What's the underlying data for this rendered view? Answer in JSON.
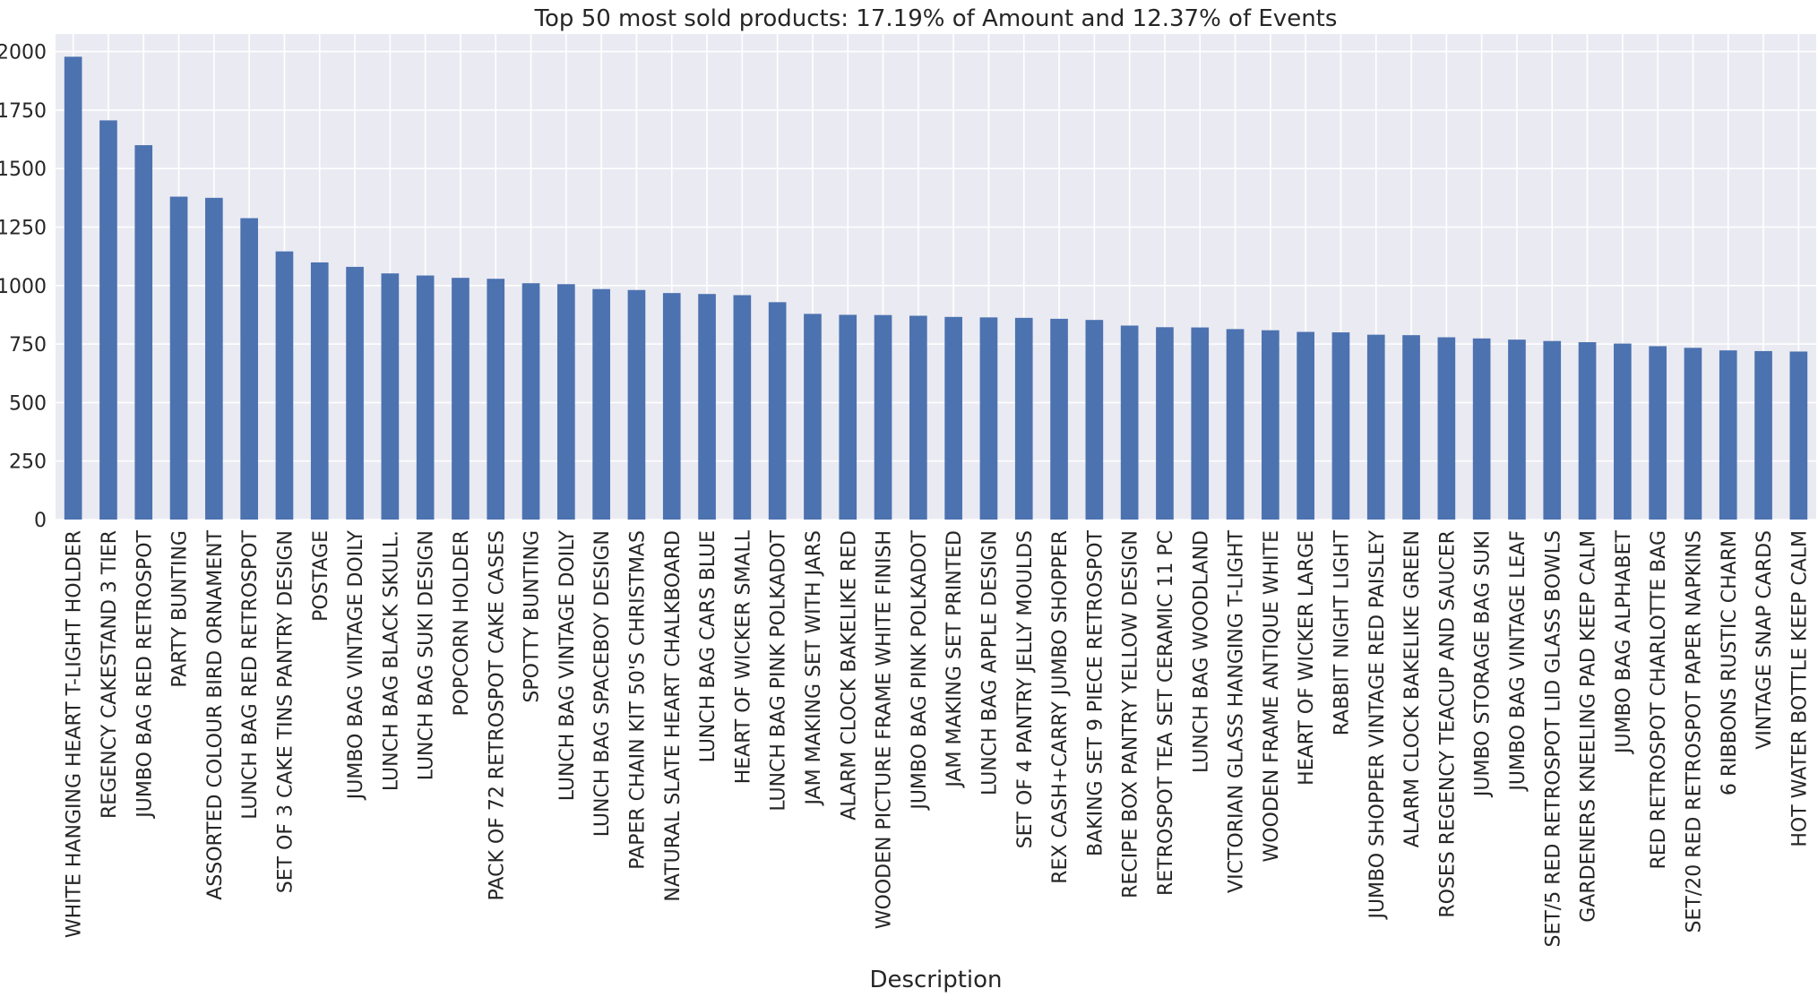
{
  "chart_data": {
    "type": "bar",
    "title": "Top 50 most sold products: 17.19% of Amount and 12.37% of Events",
    "xlabel": "Description",
    "ylabel": "",
    "ylim": [
      0,
      2075
    ],
    "yticks": [
      0,
      250,
      500,
      750,
      1000,
      1250,
      1500,
      1750,
      2000
    ],
    "grid": true,
    "legend": "none",
    "bar_color": "#4c72b0",
    "background_color": "#eaeaf2",
    "categories": [
      "WHITE HANGING HEART T-LIGHT HOLDER",
      "REGENCY CAKESTAND 3 TIER",
      "JUMBO BAG RED RETROSPOT",
      "PARTY BUNTING",
      "ASSORTED COLOUR BIRD ORNAMENT",
      "LUNCH BAG RED RETROSPOT",
      "SET OF 3 CAKE TINS PANTRY DESIGN",
      "POSTAGE",
      "JUMBO BAG VINTAGE DOILY",
      "LUNCH BAG  BLACK SKULL.",
      "LUNCH BAG SUKI DESIGN",
      "POPCORN HOLDER",
      "PACK OF 72 RETROSPOT CAKE CASES",
      "SPOTTY BUNTING",
      "LUNCH BAG VINTAGE DOILY",
      "LUNCH BAG SPACEBOY DESIGN",
      "PAPER CHAIN KIT 50'S CHRISTMAS",
      "NATURAL SLATE HEART CHALKBOARD",
      "LUNCH BAG CARS BLUE",
      "HEART OF WICKER SMALL",
      "LUNCH BAG PINK POLKADOT",
      "JAM MAKING SET WITH JARS",
      "ALARM CLOCK BAKELIKE RED",
      "WOODEN PICTURE FRAME WHITE FINISH",
      "JUMBO BAG PINK POLKADOT",
      "JAM MAKING SET PRINTED",
      "LUNCH BAG APPLE DESIGN",
      "SET OF 4 PANTRY JELLY MOULDS",
      "REX CASH+CARRY JUMBO SHOPPER",
      "BAKING SET 9 PIECE RETROSPOT",
      "RECIPE BOX PANTRY YELLOW DESIGN",
      "RETROSPOT TEA SET CERAMIC 11 PC",
      "LUNCH BAG WOODLAND",
      "VICTORIAN GLASS HANGING T-LIGHT",
      "WOODEN FRAME ANTIQUE WHITE",
      "HEART OF WICKER LARGE",
      "RABBIT NIGHT LIGHT",
      "JUMBO SHOPPER VINTAGE RED PAISLEY",
      "ALARM CLOCK BAKELIKE GREEN",
      "ROSES REGENCY TEACUP AND SAUCER",
      "JUMBO STORAGE BAG SUKI",
      "JUMBO BAG VINTAGE LEAF",
      "SET/5 RED RETROSPOT LID GLASS BOWLS",
      "GARDENERS KNEELING PAD KEEP CALM",
      "JUMBO BAG ALPHABET",
      "RED RETROSPOT CHARLOTTE BAG",
      "SET/20 RED RETROSPOT PAPER NAPKINS",
      "6 RIBBONS RUSTIC CHARM",
      "VINTAGE SNAP CARDS",
      "HOT WATER BOTTLE KEEP CALM"
    ],
    "values": [
      1978,
      1706,
      1600,
      1380,
      1375,
      1288,
      1146,
      1099,
      1080,
      1052,
      1043,
      1033,
      1029,
      1010,
      1006,
      985,
      981,
      968,
      964,
      959,
      929,
      879,
      875,
      874,
      871,
      866,
      864,
      862,
      858,
      853,
      829,
      822,
      821,
      814,
      809,
      802,
      800,
      790,
      788,
      779,
      774,
      769,
      763,
      758,
      752,
      741,
      734,
      723,
      720,
      718
    ]
  }
}
